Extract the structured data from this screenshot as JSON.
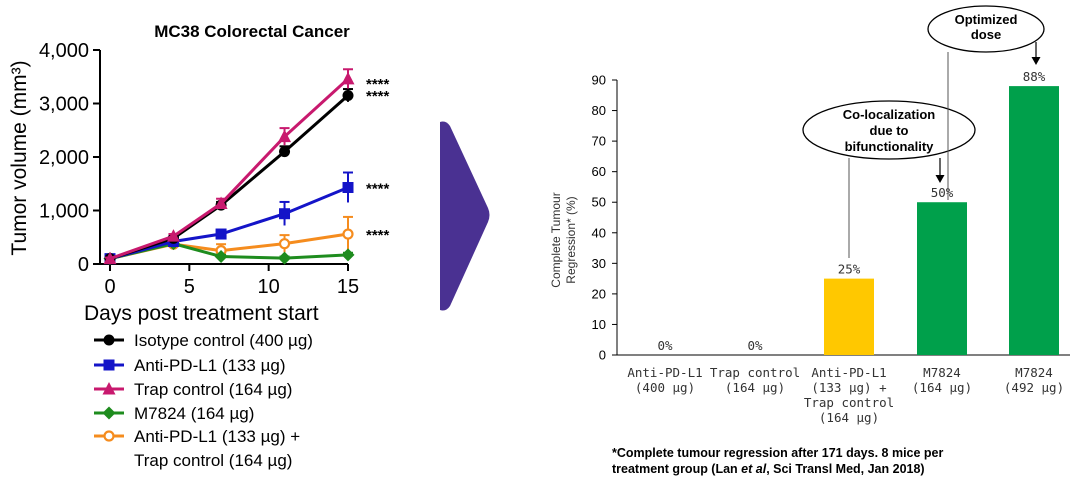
{
  "chart_data": [
    {
      "type": "line",
      "title": "MC38 Colorectal Cancer",
      "xlabel": "Days post treatment start",
      "ylabel": "Tumor volume (mm³)",
      "xlim": [
        0,
        15
      ],
      "ylim": [
        0,
        4000
      ],
      "xticks": [
        0,
        5,
        10,
        15
      ],
      "xtick_labels": [
        "0",
        "5",
        "10",
        "15"
      ],
      "yticks": [
        0,
        1000,
        2000,
        3000,
        4000
      ],
      "ytick_labels": [
        "0",
        "1,000",
        "2,000",
        "3,000",
        "4,000"
      ],
      "series": [
        {
          "name": "Isotype control (400 µg)",
          "color": "#000000",
          "marker": "circle",
          "x": [
            0,
            4,
            7,
            11,
            15
          ],
          "values": [
            100,
            480,
            1100,
            2100,
            3150
          ],
          "errors": [
            20,
            40,
            60,
            100,
            120
          ],
          "significance": "****"
        },
        {
          "name": "Anti-PD-L1 (133 µg)",
          "color": "#1414c8",
          "marker": "square",
          "x": [
            0,
            4,
            7,
            11,
            15
          ],
          "values": [
            100,
            420,
            560,
            940,
            1430
          ],
          "errors": [
            20,
            40,
            80,
            220,
            280
          ],
          "significance": "****"
        },
        {
          "name": "Trap control (164 µg)",
          "color": "#c8196e",
          "marker": "triangle",
          "x": [
            0,
            4,
            7,
            11,
            15
          ],
          "values": [
            100,
            520,
            1130,
            2380,
            3460
          ],
          "errors": [
            20,
            40,
            90,
            160,
            180
          ],
          "significance": "****"
        },
        {
          "name": "M7824 (164 µg)",
          "color": "#1e8c1e",
          "marker": "diamond",
          "x": [
            0,
            4,
            7,
            11,
            15
          ],
          "values": [
            100,
            380,
            140,
            110,
            170
          ],
          "errors": [
            20,
            40,
            30,
            30,
            40
          ],
          "significance": ""
        },
        {
          "name": "Anti-PD-L1 (133 µg) + Trap control (164 µg)",
          "label_lines": [
            "Anti-PD-L1 (133 µg) +",
            "Trap control (164 µg)"
          ],
          "color": "#f58c1e",
          "marker": "open-circle",
          "x": [
            0,
            4,
            7,
            11,
            15
          ],
          "values": [
            100,
            370,
            250,
            380,
            560
          ],
          "errors": [
            20,
            40,
            120,
            160,
            320
          ],
          "significance": "****"
        }
      ]
    },
    {
      "type": "bar",
      "ylabel_lines": [
        "Complete Tumour",
        "Regression* (%)"
      ],
      "ylim": [
        0,
        90
      ],
      "yticks": [
        0,
        10,
        20,
        30,
        40,
        50,
        60,
        70,
        80,
        90
      ],
      "categories": [
        [
          "Anti-PD-L1",
          "(400 µg)"
        ],
        [
          "Trap control",
          "(164 µg)"
        ],
        [
          "Anti-PD-L1",
          "(133 µg) +",
          "Trap control",
          "(164 µg)"
        ],
        [
          "M7824",
          "(164 µg)"
        ],
        [
          "M7824",
          "(492 µg)"
        ]
      ],
      "values": [
        0,
        0,
        25,
        50,
        88
      ],
      "value_labels": [
        "0%",
        "0%",
        "25%",
        "50%",
        "88%"
      ],
      "bar_colors": [
        "#ffc800",
        "#ffc800",
        "#ffc800",
        "#00a04b",
        "#00a04b"
      ],
      "annotations": [
        {
          "lines": [
            "Co-localization",
            "due to",
            "bifunctionality"
          ]
        },
        {
          "lines": [
            "Optimized",
            "dose"
          ]
        }
      ],
      "footnote_parts": [
        "*Complete tumour regression after 171 days. 8 mice per",
        "treatment group (Lan ",
        "et al",
        ", Sci Transl Med, Jan 2018)"
      ]
    }
  ],
  "colors": {
    "arrow": "#4a3192"
  }
}
